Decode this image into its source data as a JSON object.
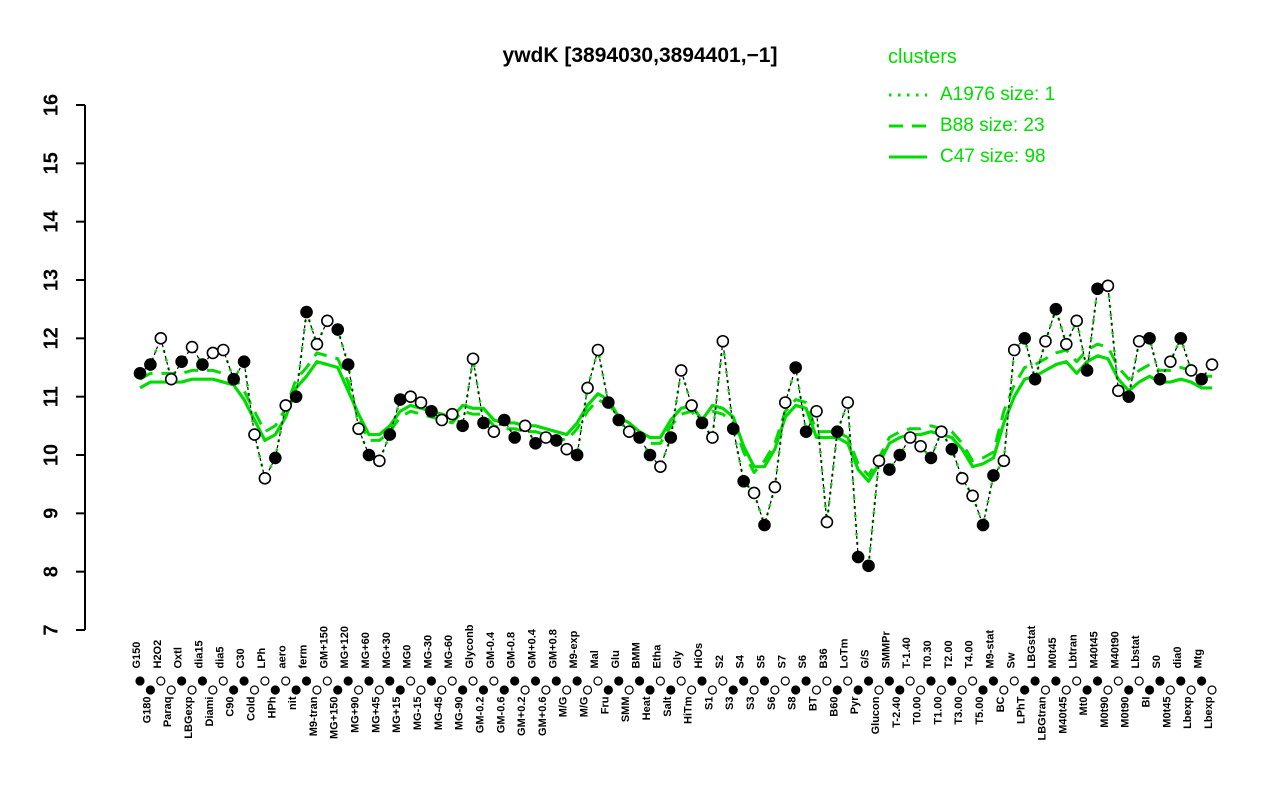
{
  "title": "ywdK [3894030,3894401,−1]",
  "legend": {
    "heading": "clusters",
    "entries": [
      {
        "label": "A1976 size: 1",
        "style": "dotted"
      },
      {
        "label": "B88 size: 23",
        "style": "dashed"
      },
      {
        "label": "C47 size: 98",
        "style": "solid"
      }
    ]
  },
  "colors": {
    "cluster_green": "#00DC00",
    "point_filled": "#000000",
    "point_open": "#ffffff",
    "axis": "#000000"
  },
  "chart_data": {
    "type": "line",
    "title": "ywdK [3894030,3894401,−1]",
    "xlabel": "",
    "ylabel": "",
    "ylim": [
      7,
      16
    ],
    "yticks": [
      7,
      8,
      9,
      10,
      11,
      12,
      13,
      14,
      15,
      16
    ],
    "grid": false,
    "legend_position": "top-right",
    "categories": [
      "G150",
      "G180",
      "H2O2",
      "Paraq",
      "Oxtl",
      "LBGexp",
      "dia15",
      "Diami",
      "dia5",
      "C90",
      "C30",
      "Cold",
      "LPh",
      "HPh",
      "aero",
      "nit",
      "ferm",
      "M9-tran",
      "GM+150",
      "MG+150",
      "MG+120",
      "MG+90",
      "MG+60",
      "MG+45",
      "MG+30",
      "MG+15",
      "MG0",
      "MG-15",
      "MG-30",
      "MG-45",
      "MG-60",
      "MG-90",
      "Glyconb",
      "GM-0.2",
      "GM-0.4",
      "GM-0.6",
      "GM-0.8",
      "GM+0.2",
      "GM+0.4",
      "GM+0.6",
      "GM+0.8",
      "M/G",
      "M9-exp",
      "M/G",
      "Mal",
      "Fru",
      "Glu",
      "SMM",
      "BMM",
      "Heat",
      "Etha",
      "Salt",
      "Gly",
      "HiTm",
      "HiOs",
      "S1",
      "S2",
      "S3",
      "S4",
      "S3",
      "S5",
      "S6",
      "S7",
      "S8",
      "S6",
      "BT",
      "B36",
      "B60",
      "LoTm",
      "Pyr",
      "G/S",
      "Glucon",
      "SMMPr",
      "T-2.40",
      "T-1.40",
      "T0.00",
      "T0.30",
      "T1.00",
      "T2.00",
      "T3.00",
      "T4.00",
      "T5.00",
      "M9-stat",
      "BC",
      "Sw",
      "LPhT",
      "LBGstat",
      "LBGtran",
      "M0t45",
      "M40t45",
      "Lbtran",
      "Mt0",
      "M40t45",
      "M0t90",
      "M40t90",
      "M0t90",
      "Lbstat",
      "BI",
      "S0",
      "M0t45",
      "dia0",
      "Lbexp",
      "Mtg",
      "Lbexp"
    ],
    "marker_fills": [
      1,
      1,
      0,
      0,
      1,
      0,
      1,
      0,
      0,
      1,
      1,
      0,
      0,
      1,
      0,
      1,
      1,
      0,
      0,
      1,
      1,
      0,
      1,
      0,
      1,
      1,
      0,
      0,
      1,
      0,
      0,
      1,
      0,
      1,
      0,
      1,
      1,
      0,
      1,
      0,
      1,
      0,
      1,
      0,
      0,
      1,
      1,
      0,
      1,
      1,
      0,
      1,
      0,
      0,
      1,
      0,
      0,
      1,
      1,
      0,
      1,
      0,
      0,
      1,
      1,
      0,
      0,
      1,
      0,
      1,
      1,
      0,
      1,
      1,
      0,
      0,
      1,
      0,
      1,
      0,
      0,
      1,
      1,
      0,
      0,
      1,
      1,
      0,
      1,
      0,
      0,
      1,
      1,
      0,
      0,
      1,
      0,
      1,
      1,
      0,
      1,
      0,
      1,
      0
    ],
    "series": [
      {
        "name": "ywdK",
        "role": "gene-points",
        "style": "black-dashed",
        "values": [
          11.4,
          11.55,
          12.0,
          11.3,
          11.6,
          11.85,
          11.55,
          11.75,
          11.8,
          11.3,
          11.6,
          10.35,
          9.6,
          9.95,
          10.85,
          11.0,
          12.45,
          11.9,
          12.3,
          12.15,
          11.55,
          10.45,
          10.0,
          9.9,
          10.35,
          10.95,
          11.0,
          10.9,
          10.75,
          10.6,
          10.7,
          10.5,
          11.65,
          10.55,
          10.4,
          10.6,
          10.3,
          10.5,
          10.2,
          10.3,
          10.25,
          10.1,
          10.0,
          11.15,
          11.8,
          10.9,
          10.6,
          10.4,
          10.3,
          10.0,
          9.8,
          10.3,
          11.45,
          10.85,
          10.55,
          10.3,
          11.95,
          10.45,
          9.55,
          9.35,
          8.8,
          9.45,
          10.9,
          11.5,
          10.4,
          10.75,
          8.85,
          10.4,
          10.9,
          8.25,
          8.1,
          9.9,
          9.75,
          10.0,
          10.3,
          10.15,
          9.95,
          10.4,
          10.1,
          9.6,
          9.3,
          8.8,
          9.65,
          9.9,
          11.8,
          12.0,
          11.3,
          11.95,
          12.5,
          11.9,
          12.3,
          11.45,
          12.85,
          12.9,
          11.1,
          11.0,
          11.95,
          12.0,
          11.3,
          11.6,
          12.0,
          11.45,
          11.3,
          11.55
        ]
      },
      {
        "name": "A1976",
        "size": 1,
        "role": "cluster",
        "style": "dotted",
        "values": [
          11.4,
          11.55,
          12.0,
          11.3,
          11.6,
          11.85,
          11.55,
          11.75,
          11.8,
          11.3,
          11.6,
          10.35,
          9.6,
          9.95,
          10.85,
          11.0,
          12.45,
          11.9,
          12.3,
          12.15,
          11.55,
          10.45,
          10.0,
          9.9,
          10.35,
          10.95,
          11.0,
          10.9,
          10.75,
          10.6,
          10.7,
          10.5,
          11.65,
          10.55,
          10.4,
          10.6,
          10.3,
          10.5,
          10.2,
          10.3,
          10.25,
          10.1,
          10.0,
          11.15,
          11.8,
          10.9,
          10.6,
          10.4,
          10.3,
          10.0,
          9.8,
          10.3,
          11.45,
          10.85,
          10.55,
          10.3,
          11.95,
          10.45,
          9.55,
          9.35,
          8.8,
          9.45,
          10.9,
          11.5,
          10.4,
          10.75,
          8.85,
          10.4,
          10.9,
          8.25,
          8.1,
          9.9,
          9.75,
          10.0,
          10.3,
          10.15,
          9.95,
          10.4,
          10.1,
          9.6,
          9.3,
          8.8,
          9.65,
          9.9,
          11.8,
          12.0,
          11.3,
          11.95,
          12.5,
          11.9,
          12.3,
          11.45,
          12.85,
          12.9,
          11.1,
          11.0,
          11.95,
          12.0,
          11.3,
          11.6,
          12.0,
          11.45,
          11.3,
          11.55
        ]
      },
      {
        "name": "B88",
        "size": 23,
        "role": "cluster",
        "style": "dashed",
        "values": [
          11.3,
          11.4,
          11.4,
          11.4,
          11.4,
          11.45,
          11.45,
          11.45,
          11.4,
          11.35,
          11.1,
          10.75,
          10.4,
          10.5,
          10.8,
          11.3,
          11.5,
          11.75,
          11.7,
          11.65,
          11.25,
          10.6,
          10.25,
          10.25,
          10.4,
          10.65,
          10.75,
          10.7,
          10.65,
          10.6,
          10.55,
          10.75,
          10.7,
          10.7,
          10.5,
          10.45,
          10.45,
          10.4,
          10.4,
          10.35,
          10.3,
          10.25,
          10.45,
          10.75,
          10.95,
          10.85,
          10.55,
          10.45,
          10.3,
          10.2,
          10.2,
          10.5,
          10.7,
          10.75,
          10.5,
          10.75,
          10.7,
          10.55,
          10.05,
          9.7,
          9.9,
          10.2,
          10.75,
          10.95,
          10.9,
          10.4,
          10.4,
          10.4,
          10.3,
          9.85,
          9.65,
          9.95,
          10.3,
          10.4,
          10.45,
          10.45,
          10.5,
          10.45,
          10.4,
          10.2,
          9.9,
          9.95,
          10.05,
          10.75,
          11.2,
          11.5,
          11.55,
          11.65,
          11.75,
          11.8,
          11.6,
          11.8,
          11.9,
          11.85,
          11.5,
          11.3,
          11.45,
          11.55,
          11.45,
          11.45,
          11.5,
          11.45,
          11.35,
          11.35
        ]
      },
      {
        "name": "C47",
        "size": 98,
        "role": "cluster",
        "style": "solid",
        "values": [
          11.15,
          11.25,
          11.25,
          11.25,
          11.25,
          11.3,
          11.3,
          11.3,
          11.25,
          11.2,
          10.95,
          10.6,
          10.25,
          10.35,
          10.65,
          11.15,
          11.35,
          11.6,
          11.55,
          11.5,
          11.1,
          10.7,
          10.35,
          10.35,
          10.5,
          10.75,
          10.85,
          10.8,
          10.75,
          10.7,
          10.65,
          10.85,
          10.8,
          10.8,
          10.6,
          10.55,
          10.55,
          10.5,
          10.5,
          10.45,
          10.4,
          10.35,
          10.55,
          10.85,
          11.05,
          10.95,
          10.65,
          10.55,
          10.4,
          10.3,
          10.3,
          10.6,
          10.8,
          10.85,
          10.6,
          10.85,
          10.8,
          10.65,
          10.15,
          9.8,
          9.8,
          10.1,
          10.65,
          10.85,
          10.8,
          10.3,
          10.3,
          10.3,
          10.2,
          9.75,
          9.55,
          9.85,
          10.2,
          10.3,
          10.35,
          10.35,
          10.4,
          10.35,
          10.3,
          10.1,
          9.8,
          9.85,
          9.95,
          10.55,
          11.0,
          11.3,
          11.35,
          11.45,
          11.55,
          11.6,
          11.4,
          11.6,
          11.7,
          11.65,
          11.3,
          11.1,
          11.25,
          11.35,
          11.25,
          11.25,
          11.3,
          11.25,
          11.15,
          11.15
        ]
      }
    ]
  }
}
